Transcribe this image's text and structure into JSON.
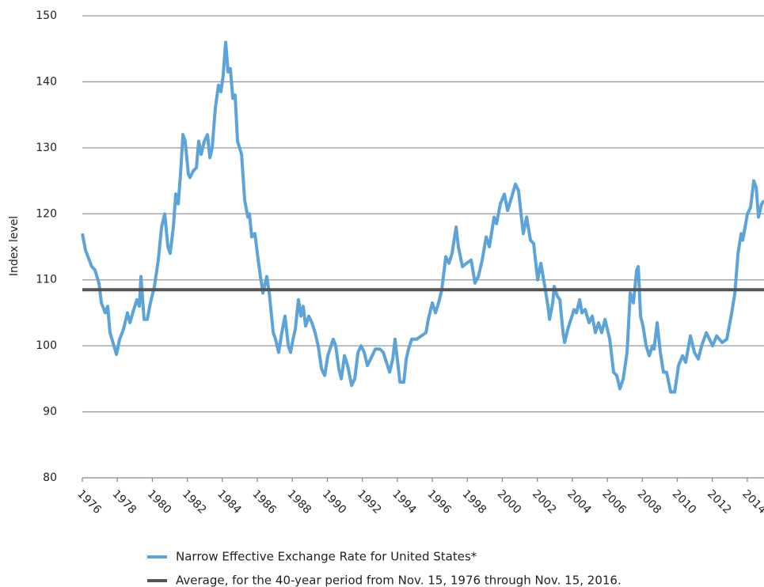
{
  "chart_data": {
    "type": "line",
    "y_label": "Index level",
    "xlim": [
      1976,
      2015
    ],
    "xticks": [
      1976,
      1978,
      1980,
      1982,
      1984,
      1986,
      1988,
      1990,
      1992,
      1994,
      1996,
      1998,
      2000,
      2002,
      2004,
      2006,
      2008,
      2010,
      2012,
      2014
    ],
    "ylim": [
      80,
      150
    ],
    "yticks": [
      80,
      90,
      100,
      110,
      120,
      130,
      140,
      150
    ],
    "grid": true,
    "legend": "bottom",
    "series": [
      {
        "name": "Narrow Effective Exchange Rate for United States*",
        "color": "#5ba3d9",
        "x": [
          1976.0,
          1976.18,
          1976.54,
          1976.72,
          1976.95,
          1977.09,
          1977.31,
          1977.45,
          1977.58,
          1977.95,
          1978.13,
          1978.35,
          1978.58,
          1978.72,
          1978.94,
          1979.12,
          1979.26,
          1979.35,
          1979.53,
          1979.71,
          1979.89,
          1980.12,
          1980.34,
          1980.53,
          1980.71,
          1980.89,
          1981.02,
          1981.2,
          1981.34,
          1981.48,
          1981.61,
          1981.75,
          1981.88,
          1982.06,
          1982.15,
          1982.34,
          1982.52,
          1982.65,
          1982.79,
          1982.97,
          1983.15,
          1983.29,
          1983.42,
          1983.6,
          1983.78,
          1983.92,
          1984.05,
          1984.19,
          1984.33,
          1984.46,
          1984.6,
          1984.73,
          1984.87,
          1985.1,
          1985.28,
          1985.46,
          1985.55,
          1985.68,
          1985.86,
          1986.05,
          1986.18,
          1986.32,
          1986.54,
          1986.68,
          1986.91,
          1987.04,
          1987.22,
          1987.4,
          1987.58,
          1987.77,
          1987.9,
          1988.04,
          1988.17,
          1988.35,
          1988.49,
          1988.62,
          1988.76,
          1988.94,
          1989.12,
          1989.3,
          1989.48,
          1989.67,
          1989.85,
          1990.03,
          1990.21,
          1990.34,
          1990.48,
          1990.66,
          1990.8,
          1990.98,
          1991.16,
          1991.39,
          1991.57,
          1991.75,
          1991.93,
          1992.11,
          1992.29,
          1992.47,
          1992.74,
          1993.01,
          1993.2,
          1993.38,
          1993.56,
          1993.74,
          1993.87,
          1994.15,
          1994.37,
          1994.51,
          1994.64,
          1994.82,
          1995.1,
          1995.37,
          1995.64,
          1995.77,
          1996.0,
          1996.18,
          1996.36,
          1996.54,
          1996.77,
          1996.95,
          1997.13,
          1997.36,
          1997.49,
          1997.72,
          1997.95,
          1998.22,
          1998.44,
          1998.63,
          1998.85,
          1999.08,
          1999.26,
          1999.53,
          1999.67,
          1999.89,
          2000.12,
          2000.3,
          2000.53,
          2000.75,
          2000.93,
          2001.07,
          2001.2,
          2001.39,
          2001.61,
          2001.79,
          2002.02,
          2002.2,
          2002.43,
          2002.61,
          2002.7,
          2002.88,
          2002.97,
          2003.15,
          2003.29,
          2003.47,
          2003.56,
          2003.74,
          2003.92,
          2004.1,
          2004.24,
          2004.42,
          2004.55,
          2004.73,
          2004.96,
          2005.14,
          2005.32,
          2005.5,
          2005.68,
          2005.87,
          2006.14,
          2006.36,
          2006.54,
          2006.72,
          2006.91,
          2007.13,
          2007.31,
          2007.49,
          2007.68,
          2007.77,
          2007.9,
          2008.04,
          2008.22,
          2008.4,
          2008.58,
          2008.67,
          2008.85,
          2009.03,
          2009.21,
          2009.39,
          2009.62,
          2009.85,
          2010.07,
          2010.3,
          2010.48,
          2010.75,
          2010.98,
          2011.2,
          2011.39,
          2011.66,
          2011.84,
          2012.02,
          2012.25,
          2012.56,
          2012.83,
          2013.11,
          2013.29,
          2013.47,
          2013.65,
          2013.74,
          2014.01,
          2014.19,
          2014.37,
          2014.51,
          2014.64,
          2014.82,
          2014.96
        ],
        "values": [
          117,
          114.5,
          112,
          111.5,
          109.5,
          106.5,
          105,
          106,
          102,
          98.7,
          101,
          102.5,
          105,
          103.5,
          105.5,
          107,
          106,
          110.5,
          104,
          104,
          106.5,
          109,
          113,
          118,
          120,
          115,
          114,
          118,
          123,
          121.5,
          126,
          132,
          131,
          126,
          125.5,
          126.5,
          127,
          131,
          129,
          131,
          132,
          128.5,
          130,
          136,
          139.5,
          138.5,
          141,
          146,
          141.5,
          142,
          137.5,
          138,
          131,
          129,
          122,
          119.5,
          120,
          116.5,
          117,
          113,
          110.5,
          108,
          110.5,
          108,
          102,
          101,
          99,
          102,
          104.5,
          100,
          99,
          101,
          102.5,
          107,
          104.5,
          106,
          103,
          104.5,
          103.5,
          102,
          100,
          96.5,
          95.5,
          98.5,
          100,
          101,
          100,
          96.5,
          95,
          98.5,
          97,
          94,
          95,
          99,
          100,
          99,
          97,
          98,
          99.5,
          99.5,
          99,
          97.5,
          96,
          98,
          101,
          94.5,
          94.5,
          98,
          99.5,
          101,
          101,
          101.5,
          102,
          104,
          106.5,
          105,
          106.5,
          108.5,
          113.5,
          112.5,
          114,
          118,
          115,
          112,
          112.5,
          113,
          109.5,
          110.5,
          113,
          116.5,
          115,
          119.5,
          118.5,
          121.5,
          123,
          120.5,
          122.5,
          124.5,
          123.5,
          120,
          117,
          119.5,
          116,
          115.5,
          110,
          112.5,
          109,
          106,
          104,
          106.5,
          109,
          107.5,
          107,
          102,
          100.5,
          102.5,
          104,
          105.5,
          105,
          107,
          105,
          105.5,
          103.5,
          104.5,
          102,
          103.5,
          102,
          104,
          101,
          96,
          95.5,
          93.5,
          95,
          99,
          108,
          106.5,
          111.5,
          112,
          104.5,
          103,
          100,
          98.5,
          100,
          99.5,
          103.5,
          99,
          96,
          96,
          93,
          93,
          97,
          98.5,
          97.5,
          101.5,
          99,
          98,
          100,
          102,
          101,
          100,
          101.5,
          100.5,
          101,
          105,
          108,
          114,
          117,
          116,
          120,
          121,
          125,
          124,
          119.5,
          121.5,
          122
        ]
      },
      {
        "name": "Average, for the 40-year period from Nov. 15, 1976 through Nov. 15, 2016.",
        "color": "#555555",
        "x": [
          1976,
          2015
        ],
        "values": [
          108.5,
          108.5
        ]
      }
    ]
  }
}
